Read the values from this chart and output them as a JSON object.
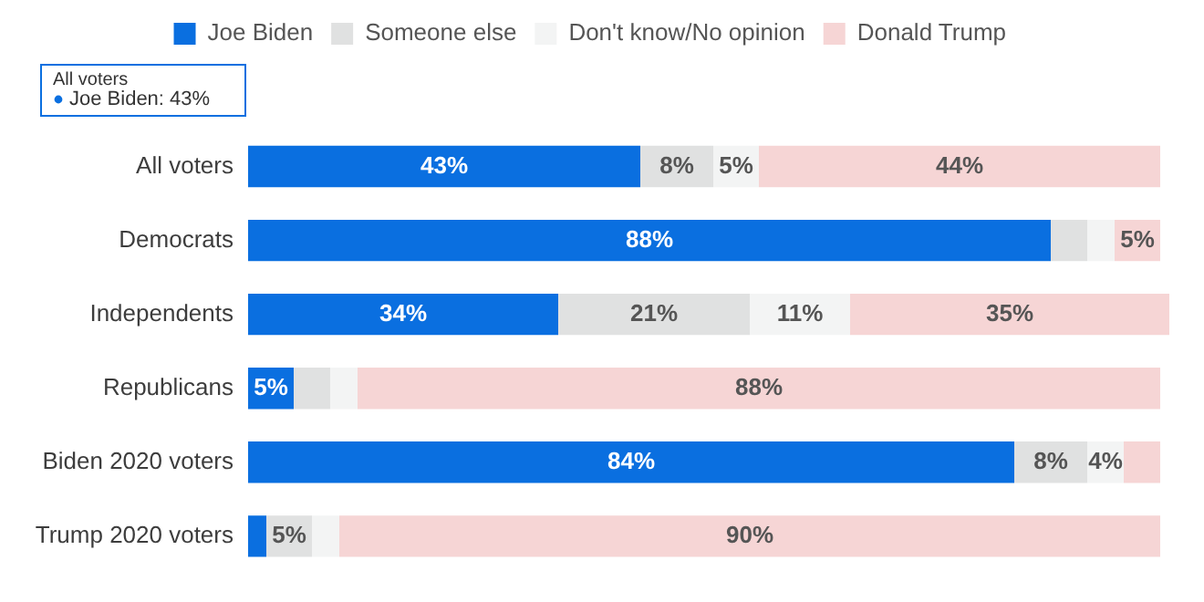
{
  "chart_data": {
    "type": "bar",
    "orientation": "horizontal",
    "stacked": true,
    "categories": [
      "All voters",
      "Democrats",
      "Independents",
      "Republicans",
      "Biden 2020 voters",
      "Trump 2020 voters"
    ],
    "series": [
      {
        "name": "Joe Biden",
        "color": "#0a6fe0",
        "values": [
          43,
          88,
          34,
          5,
          84,
          2
        ],
        "value_labels": [
          "43%",
          "88%",
          "34%",
          "5%",
          "84%",
          null
        ]
      },
      {
        "name": "Someone else",
        "color": "#e0e1e1",
        "values": [
          8,
          4,
          21,
          4,
          8,
          5
        ],
        "value_labels": [
          "8%",
          null,
          "21%",
          null,
          "8%",
          "5%"
        ]
      },
      {
        "name": "Don't know/No opinion",
        "color": "#f3f4f4",
        "values": [
          5,
          3,
          11,
          3,
          4,
          3
        ],
        "value_labels": [
          "5%",
          null,
          "11%",
          null,
          "4%",
          null
        ]
      },
      {
        "name": "Donald Trump",
        "color": "#f6d5d5",
        "values": [
          44,
          5,
          35,
          88,
          4,
          90
        ],
        "value_labels": [
          "44%",
          "5%",
          "35%",
          "88%",
          null,
          "90%"
        ]
      }
    ],
    "xlim": [
      0,
      101
    ],
    "tick_labels": "y",
    "legend": "top",
    "annotations": [
      "All voters",
      "Joe Biden: 43%"
    ]
  }
}
